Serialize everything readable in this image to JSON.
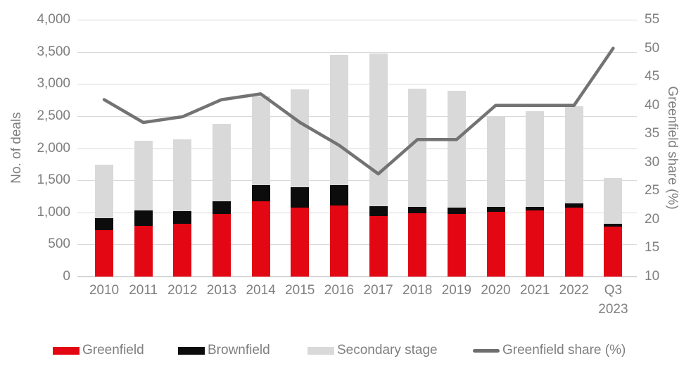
{
  "chart_data": {
    "type": "bar",
    "subtype": "stacked-bars-with-line-overlay",
    "title": "",
    "categories": [
      "2010",
      "2011",
      "2012",
      "2013",
      "2014",
      "2015",
      "2016",
      "2017",
      "2018",
      "2019",
      "2020",
      "2021",
      "2022",
      "Q3 2023"
    ],
    "series": [
      {
        "name": "Greenfield",
        "type": "bar",
        "color": "#e30613",
        "values": [
          720,
          790,
          820,
          975,
          1175,
          1075,
          1110,
          940,
          985,
          975,
          1010,
          1035,
          1070,
          780
        ]
      },
      {
        "name": "Brownfield",
        "type": "bar",
        "color": "#0c0c0c",
        "values": [
          190,
          240,
          200,
          200,
          255,
          315,
          320,
          155,
          95,
          95,
          80,
          55,
          75,
          40
        ]
      },
      {
        "name": "Secondary stage",
        "type": "bar",
        "color": "#d9d9d9",
        "values": [
          830,
          1090,
          1120,
          1205,
          1375,
          1520,
          2020,
          2375,
          1850,
          1820,
          1410,
          1490,
          1505,
          720
        ]
      },
      {
        "name": "Greenfield share (%)",
        "type": "line",
        "axis": "right",
        "color": "#737373",
        "values": [
          41,
          37,
          38,
          41,
          42,
          37,
          33,
          28,
          34,
          34,
          40,
          40,
          40,
          50
        ]
      }
    ],
    "left_axis": {
      "title": "No. of deals",
      "min": 0,
      "max": 4000,
      "step": 500,
      "tick_labels": [
        "4,000",
        "3,500",
        "3,000",
        "2,500",
        "2,000",
        "1,500",
        "1,000",
        "500",
        "0"
      ]
    },
    "right_axis": {
      "title": "Greenfield share (%)",
      "min": 10,
      "max": 55,
      "step": 5,
      "tick_labels": [
        "55",
        "50",
        "45",
        "40",
        "35",
        "30",
        "25",
        "20",
        "15",
        "10"
      ]
    },
    "legend": [
      {
        "label": "Greenfield",
        "swatch": "bar",
        "color": "#e30613"
      },
      {
        "label": "Brownfield",
        "swatch": "bar",
        "color": "#0c0c0c"
      },
      {
        "label": "Secondary stage",
        "swatch": "bar",
        "color": "#d9d9d9"
      },
      {
        "label": "Greenfield share (%)",
        "swatch": "line",
        "color": "#6e6e6e"
      }
    ],
    "grid": "horizontal",
    "legend_position": "bottom",
    "colors": {
      "gridline": "#d9d9d9",
      "axis_text": "#7f7f7f",
      "background": "#ffffff"
    }
  }
}
